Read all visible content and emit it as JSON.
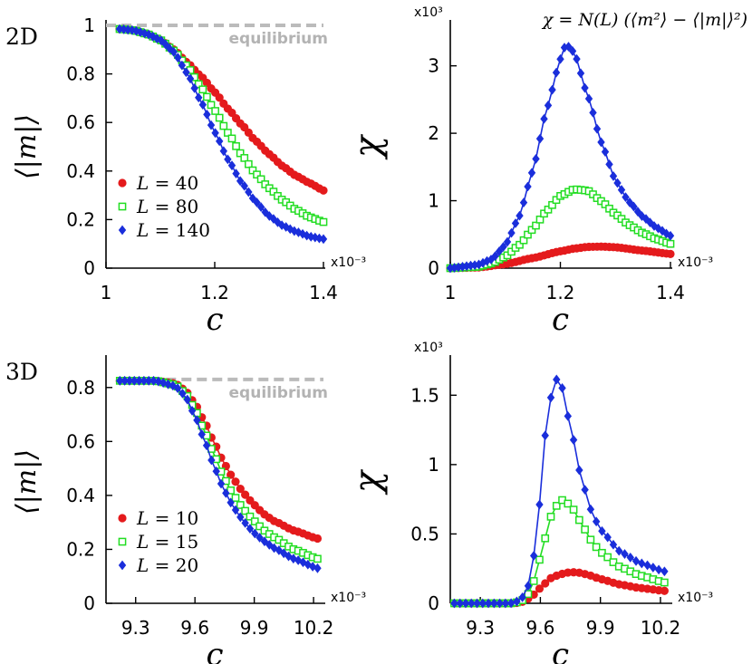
{
  "colors": {
    "red": "#e41a1c",
    "green": "#22dd22",
    "blue": "#1a2edb",
    "equilibrium": "#bbbbbb"
  },
  "formula": "χ = N(L) (⟨m²⟩ − ⟨|m|⟩²)",
  "chart_data": [
    {
      "id": "m2d",
      "type": "line",
      "panel_label": "2D",
      "ylabel": "⟨|m|⟩",
      "xlabel": "c",
      "x_scale_label": "x10⁻³",
      "xlim": [
        1.0,
        1.4
      ],
      "ylim": [
        0,
        1
      ],
      "x_ticks": [
        "1",
        "1.2",
        "1.4"
      ],
      "y_ticks": [
        "0",
        "0.2",
        "0.4",
        "0.6",
        "0.8",
        "1"
      ],
      "legend_position": "bottom-left",
      "equilibrium": {
        "label": "equilibrium",
        "value": 1.0,
        "x_start": 1.0
      },
      "x_start": 1.025,
      "x_end": 1.4,
      "n_points": 50,
      "series": [
        {
          "name": "L = 40",
          "L": "40",
          "marker": "circle",
          "color": "red",
          "x": [
            1.025,
            1.05,
            1.075,
            1.1,
            1.125,
            1.15,
            1.175,
            1.2,
            1.225,
            1.25,
            1.275,
            1.3,
            1.325,
            1.35,
            1.375,
            1.4
          ],
          "values": [
            0.985,
            0.98,
            0.965,
            0.94,
            0.9,
            0.845,
            0.79,
            0.725,
            0.655,
            0.59,
            0.525,
            0.47,
            0.42,
            0.38,
            0.35,
            0.32
          ]
        },
        {
          "name": "L = 80",
          "L": "80",
          "marker": "square",
          "color": "green",
          "x": [
            1.025,
            1.05,
            1.075,
            1.1,
            1.125,
            1.15,
            1.175,
            1.2,
            1.225,
            1.25,
            1.275,
            1.3,
            1.325,
            1.35,
            1.375,
            1.4
          ],
          "values": [
            0.985,
            0.98,
            0.965,
            0.94,
            0.895,
            0.83,
            0.745,
            0.65,
            0.555,
            0.465,
            0.39,
            0.33,
            0.28,
            0.24,
            0.21,
            0.19
          ]
        },
        {
          "name": "L = 140",
          "L": "140",
          "marker": "diamond",
          "color": "blue",
          "x": [
            1.025,
            1.05,
            1.075,
            1.1,
            1.125,
            1.15,
            1.175,
            1.2,
            1.225,
            1.25,
            1.275,
            1.3,
            1.325,
            1.35,
            1.375,
            1.4
          ],
          "values": [
            0.985,
            0.98,
            0.965,
            0.94,
            0.89,
            0.8,
            0.685,
            0.56,
            0.445,
            0.35,
            0.275,
            0.215,
            0.175,
            0.15,
            0.13,
            0.12
          ]
        }
      ]
    },
    {
      "id": "chi2d",
      "type": "line",
      "ylabel": "χ",
      "xlabel": "c",
      "x_scale_label": "x10⁻³",
      "y_scale_label": "x10³",
      "xlim": [
        1.0,
        1.4
      ],
      "ylim": [
        0,
        3.6
      ],
      "x_ticks": [
        "1",
        "1.2",
        "1.4"
      ],
      "y_ticks": [
        "0",
        "1",
        "2",
        "3"
      ],
      "x_start": 1.0,
      "x_end": 1.4,
      "n_points": 55,
      "series": [
        {
          "name": "L = 40",
          "marker": "circle",
          "color": "red",
          "x": [
            1.0,
            1.05,
            1.1,
            1.15,
            1.2,
            1.225,
            1.25,
            1.275,
            1.3,
            1.35,
            1.4
          ],
          "values": [
            0.0,
            0.01,
            0.06,
            0.15,
            0.25,
            0.29,
            0.315,
            0.32,
            0.31,
            0.26,
            0.21
          ]
        },
        {
          "name": "L = 80",
          "marker": "square",
          "color": "green",
          "x": [
            1.0,
            1.05,
            1.075,
            1.1,
            1.125,
            1.15,
            1.175,
            1.2,
            1.225,
            1.25,
            1.275,
            1.3,
            1.325,
            1.35,
            1.375,
            1.4
          ],
          "values": [
            0.0,
            0.02,
            0.07,
            0.17,
            0.34,
            0.58,
            0.85,
            1.07,
            1.17,
            1.15,
            0.99,
            0.8,
            0.64,
            0.52,
            0.43,
            0.36
          ]
        },
        {
          "name": "L = 140",
          "marker": "diamond",
          "color": "blue",
          "x": [
            1.0,
            1.05,
            1.075,
            1.1,
            1.125,
            1.15,
            1.175,
            1.2,
            1.21,
            1.225,
            1.25,
            1.275,
            1.3,
            1.325,
            1.35,
            1.375,
            1.4
          ],
          "values": [
            0.0,
            0.05,
            0.13,
            0.34,
            0.76,
            1.45,
            2.35,
            3.1,
            3.32,
            3.2,
            2.55,
            1.85,
            1.3,
            0.98,
            0.76,
            0.6,
            0.48
          ]
        }
      ]
    },
    {
      "id": "m3d",
      "type": "line",
      "panel_label": "3D",
      "ylabel": "⟨|m|⟩",
      "xlabel": "c",
      "x_scale_label": "x10⁻³",
      "xlim": [
        9.15,
        10.25
      ],
      "ylim": [
        0,
        0.9
      ],
      "x_ticks": [
        "9.3",
        "9.6",
        "9.9",
        "10.2"
      ],
      "y_ticks": [
        "0",
        "0.2",
        "0.4",
        "0.6",
        "0.8"
      ],
      "legend_position": "bottom-left",
      "equilibrium": {
        "label": "equilibrium",
        "value": 0.83,
        "x_start": 9.22
      },
      "x_start": 9.22,
      "x_end": 10.22,
      "n_points": 42,
      "series": [
        {
          "name": "L = 10",
          "L": "10",
          "marker": "circle",
          "color": "red",
          "x": [
            9.22,
            9.3,
            9.4,
            9.5,
            9.55,
            9.6,
            9.65,
            9.7,
            9.75,
            9.8,
            9.85,
            9.9,
            9.95,
            10.0,
            10.1,
            10.22
          ],
          "values": [
            0.825,
            0.825,
            0.825,
            0.815,
            0.79,
            0.74,
            0.67,
            0.59,
            0.515,
            0.455,
            0.405,
            0.365,
            0.33,
            0.305,
            0.27,
            0.24
          ]
        },
        {
          "name": "L = 15",
          "L": "15",
          "marker": "square",
          "color": "green",
          "x": [
            9.22,
            9.3,
            9.4,
            9.5,
            9.55,
            9.6,
            9.65,
            9.7,
            9.75,
            9.8,
            9.85,
            9.9,
            9.95,
            10.0,
            10.1,
            10.22
          ],
          "values": [
            0.825,
            0.825,
            0.825,
            0.81,
            0.78,
            0.72,
            0.635,
            0.545,
            0.46,
            0.395,
            0.345,
            0.305,
            0.27,
            0.245,
            0.2,
            0.165
          ]
        },
        {
          "name": "L = 20",
          "L": "20",
          "marker": "diamond",
          "color": "blue",
          "x": [
            9.22,
            9.3,
            9.4,
            9.5,
            9.55,
            9.6,
            9.65,
            9.7,
            9.75,
            9.8,
            9.85,
            9.9,
            9.95,
            10.0,
            10.1,
            10.22
          ],
          "values": [
            0.825,
            0.825,
            0.825,
            0.805,
            0.77,
            0.695,
            0.6,
            0.5,
            0.415,
            0.35,
            0.3,
            0.26,
            0.23,
            0.205,
            0.165,
            0.13
          ]
        }
      ]
    },
    {
      "id": "chi3d",
      "type": "line",
      "ylabel": "χ",
      "xlabel": "c",
      "x_scale_label": "x10⁻³",
      "y_scale_label": "x10³",
      "xlim": [
        9.15,
        10.25
      ],
      "ylim": [
        0,
        1.75
      ],
      "x_ticks": [
        "9.3",
        "9.6",
        "9.9",
        "10.2"
      ],
      "y_ticks": [
        "0",
        "0.5",
        "1",
        "1.5"
      ],
      "x_start": 9.17,
      "x_end": 10.22,
      "n_points": 38,
      "series": [
        {
          "name": "L = 10",
          "marker": "circle",
          "color": "red",
          "x": [
            9.17,
            9.3,
            9.45,
            9.5,
            9.55,
            9.6,
            9.65,
            9.7,
            9.75,
            9.8,
            9.85,
            9.9,
            10.0,
            10.1,
            10.22
          ],
          "values": [
            0.0,
            0.0,
            0.0,
            0.005,
            0.04,
            0.11,
            0.18,
            0.21,
            0.225,
            0.22,
            0.2,
            0.175,
            0.135,
            0.11,
            0.09
          ]
        },
        {
          "name": "L = 15",
          "marker": "square",
          "color": "green",
          "x": [
            9.17,
            9.3,
            9.45,
            9.5,
            9.55,
            9.6,
            9.65,
            9.7,
            9.75,
            9.8,
            9.85,
            9.9,
            10.0,
            10.1,
            10.22
          ],
          "values": [
            0.0,
            0.0,
            0.0,
            0.01,
            0.08,
            0.33,
            0.62,
            0.75,
            0.71,
            0.59,
            0.46,
            0.37,
            0.26,
            0.2,
            0.15
          ]
        },
        {
          "name": "L = 20",
          "marker": "diamond",
          "color": "blue",
          "x": [
            9.17,
            9.3,
            9.45,
            9.5,
            9.55,
            9.6,
            9.63,
            9.67,
            9.7,
            9.75,
            9.8,
            9.85,
            9.9,
            10.0,
            10.1,
            10.22
          ],
          "values": [
            0.0,
            0.0,
            0.0,
            0.02,
            0.15,
            0.75,
            1.3,
            1.62,
            1.6,
            1.28,
            0.93,
            0.68,
            0.53,
            0.37,
            0.29,
            0.23
          ]
        }
      ]
    }
  ]
}
